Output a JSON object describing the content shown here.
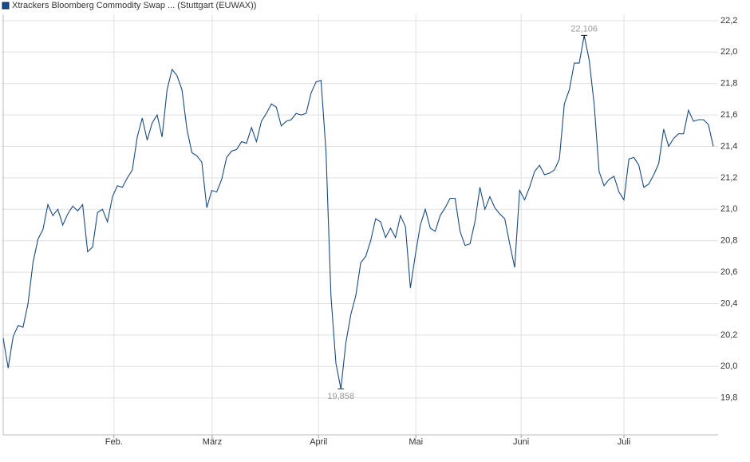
{
  "chart_data": {
    "type": "line",
    "series": [
      {
        "name": "Xtrackers Bloomberg Commodity Swap ... (Stuttgart (EUWAX))",
        "color": "#174a8c",
        "values": [
          20.18,
          19.99,
          20.19,
          20.26,
          20.25,
          20.4,
          20.66,
          20.81,
          20.87,
          21.03,
          20.96,
          21.0,
          20.9,
          20.97,
          21.02,
          20.99,
          21.03,
          20.73,
          20.76,
          20.98,
          21.0,
          20.92,
          21.08,
          21.15,
          21.14,
          21.2,
          21.25,
          21.46,
          21.58,
          21.44,
          21.55,
          21.6,
          21.46,
          21.76,
          21.89,
          21.85,
          21.76,
          21.51,
          21.36,
          21.34,
          21.3,
          21.01,
          21.12,
          21.11,
          21.19,
          21.33,
          21.37,
          21.38,
          21.43,
          21.42,
          21.52,
          21.43,
          21.56,
          21.61,
          21.67,
          21.65,
          21.53,
          21.56,
          21.57,
          21.61,
          21.6,
          21.61,
          21.74,
          21.81,
          21.82,
          21.37,
          20.45,
          20.02,
          19.858,
          20.15,
          20.33,
          20.45,
          20.66,
          20.7,
          20.8,
          20.94,
          20.92,
          20.82,
          20.88,
          20.82,
          20.96,
          20.89,
          20.5,
          20.71,
          20.9,
          21.0,
          20.88,
          20.86,
          20.96,
          21.01,
          21.07,
          21.07,
          20.86,
          20.77,
          20.78,
          20.92,
          21.14,
          21.0,
          21.08,
          21.01,
          20.97,
          20.94,
          20.78,
          20.63,
          21.12,
          21.06,
          21.14,
          21.24,
          21.28,
          21.22,
          21.23,
          21.25,
          21.32,
          21.67,
          21.76,
          21.93,
          21.93,
          22.106,
          21.95,
          21.67,
          21.24,
          21.15,
          21.19,
          21.21,
          21.11,
          21.06,
          21.32,
          21.33,
          21.28,
          21.14,
          21.16,
          21.22,
          21.29,
          21.51,
          21.4,
          21.45,
          21.48,
          21.48,
          21.63,
          21.56,
          21.57,
          21.57,
          21.54,
          21.4
        ]
      }
    ],
    "x": [
      0,
      1,
      2,
      3,
      4,
      5,
      6,
      7,
      8,
      9,
      10,
      11,
      12,
      13,
      14,
      15,
      16,
      17,
      18,
      19,
      20,
      21,
      22,
      23,
      24,
      25,
      26,
      27,
      28,
      29,
      30,
      31,
      32,
      33,
      34,
      35,
      36,
      37,
      38,
      39,
      40,
      41,
      42,
      43,
      44,
      45,
      46,
      47,
      48,
      49,
      50,
      51,
      52,
      53,
      54,
      55,
      56,
      57,
      58,
      59,
      60,
      61,
      62,
      63,
      64,
      65,
      66,
      67,
      68,
      69,
      70,
      71,
      72,
      73,
      74,
      75,
      76,
      77,
      78,
      79,
      80,
      81,
      82,
      83,
      84,
      85,
      86,
      87,
      88,
      89,
      90,
      91,
      92,
      93,
      94,
      95,
      96,
      97,
      98,
      99,
      100,
      101,
      102,
      103,
      104,
      105,
      106,
      107,
      108,
      109,
      110,
      111,
      112,
      113,
      114,
      115,
      116,
      117,
      118,
      119,
      120,
      121,
      122,
      123,
      124,
      125,
      126,
      127,
      128,
      129,
      130,
      131,
      132,
      133,
      134,
      135,
      136,
      137,
      138,
      139,
      140,
      141,
      142,
      143
    ],
    "xlim": [
      -0.32,
      143.96
    ],
    "xticks": [
      {
        "value": 22.3,
        "label": "Feb."
      },
      {
        "value": 42.1,
        "label": "März"
      },
      {
        "value": 63.5,
        "label": "April"
      },
      {
        "value": 83.1,
        "label": "Mai"
      },
      {
        "value": 104.3,
        "label": "Juni"
      },
      {
        "value": 125.0,
        "label": "Juli"
      }
    ],
    "ylim": [
      19.565,
      22.24
    ],
    "yticks": [
      {
        "value": 19.8,
        "label": "19,8"
      },
      {
        "value": 20.0,
        "label": "20,0"
      },
      {
        "value": 20.2,
        "label": "20,2"
      },
      {
        "value": 20.4,
        "label": "20,4"
      },
      {
        "value": 20.6,
        "label": "20,6"
      },
      {
        "value": 20.8,
        "label": "20,8"
      },
      {
        "value": 21.0,
        "label": "21,0"
      },
      {
        "value": 21.2,
        "label": "21,2"
      },
      {
        "value": 21.4,
        "label": "21,4"
      },
      {
        "value": 21.6,
        "label": "21,6"
      },
      {
        "value": 21.8,
        "label": "21,8"
      },
      {
        "value": 22.0,
        "label": "22,0"
      },
      {
        "value": 22.2,
        "label": "22,2"
      }
    ],
    "grid": true,
    "annotations": [
      {
        "index": 117,
        "label": "22,106",
        "position": "above"
      },
      {
        "index": 68,
        "label": "19,858",
        "position": "below"
      }
    ]
  }
}
